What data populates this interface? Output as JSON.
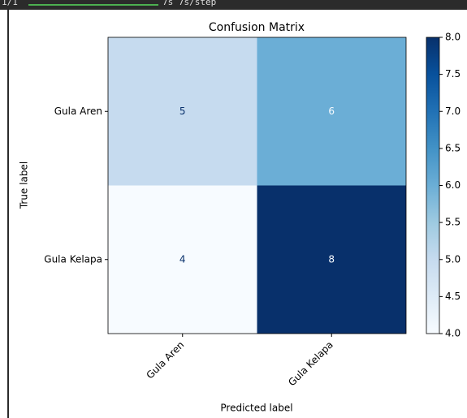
{
  "console": {
    "progress": "1/1",
    "timing": "7s 7s/step"
  },
  "chart_data": {
    "type": "heatmap",
    "title": "Confusion Matrix",
    "x_label": "Predicted label",
    "y_label": "True label",
    "x_categories": [
      "Gula Aren",
      "Gula Kelapa"
    ],
    "y_categories": [
      "Gula Aren",
      "Gula Kelapa"
    ],
    "values": [
      [
        5,
        6
      ],
      [
        4,
        8
      ]
    ],
    "colormap": "Blues",
    "clim": [
      4,
      8
    ],
    "cticks": [
      {
        "value": 4,
        "label": "4.0"
      },
      4.5,
      {
        "value": 5,
        "label": "5.0"
      },
      5.5,
      {
        "value": 6,
        "label": "6.0"
      },
      6.5,
      {
        "value": 7,
        "label": "7.0"
      },
      7.5,
      {
        "value": 8,
        "label": "8.0"
      }
    ]
  }
}
